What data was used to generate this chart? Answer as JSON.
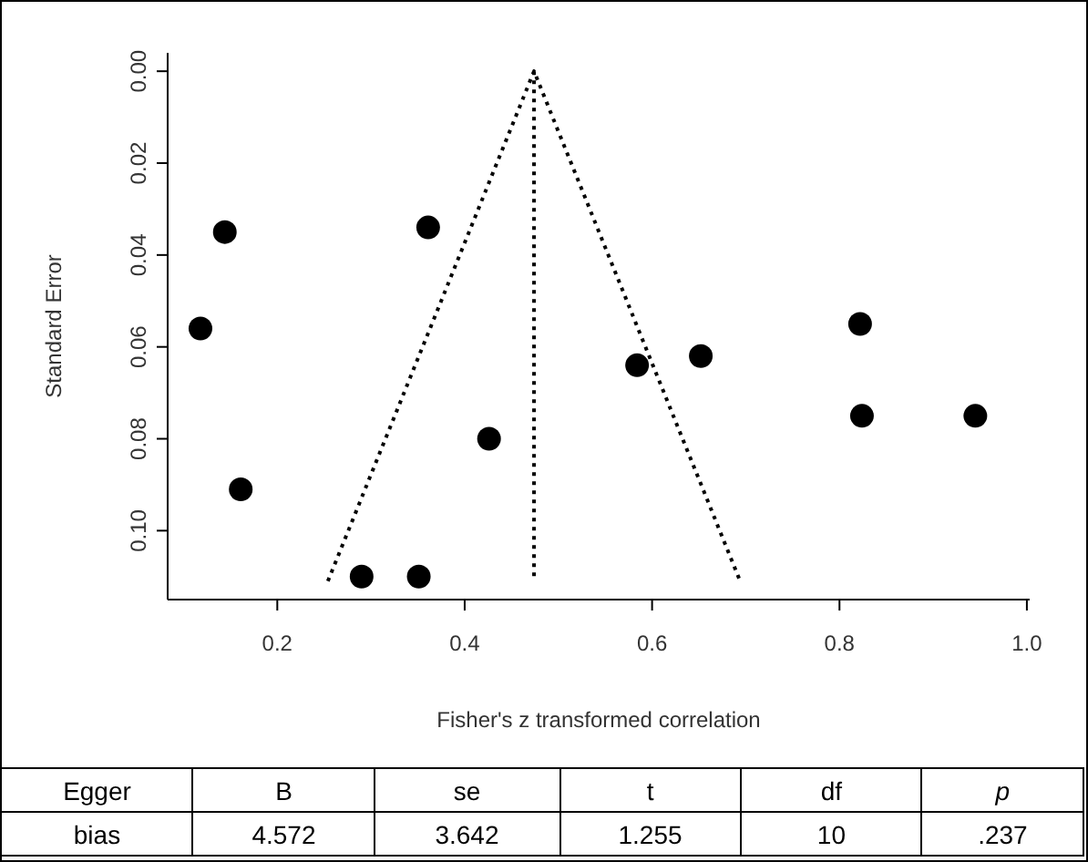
{
  "chart_data": {
    "type": "scatter",
    "xlabel": "Fisher's z transformed correlation",
    "ylabel": "Standard Error",
    "xlim": [
      0.083,
      1.003
    ],
    "ylim": [
      0.115,
      -0.004
    ],
    "xticks": [
      0.2,
      0.4,
      0.6,
      0.8,
      {
        "value": 1.0,
        "label": "1.0"
      }
    ],
    "yticks": [
      {
        "value": 0,
        "label": "0.00"
      },
      0.02,
      0.04,
      0.06,
      0.08,
      {
        "value": 0.1,
        "label": "0.10"
      }
    ],
    "marker": "circle",
    "series": [
      {
        "color": "#000000",
        "x": [
          0.144,
          0.118,
          0.161,
          0.361,
          0.426,
          0.29,
          0.351,
          0.584,
          0.652,
          0.822,
          0.824,
          0.945
        ],
        "values": [
          0.035,
          0.056,
          0.091,
          0.034,
          0.08,
          0.11,
          0.11,
          0.064,
          0.062,
          0.055,
          0.075,
          0.075
        ]
      },
      {
        "type": "line",
        "color": "#000000",
        "line_style": "dotted",
        "marker": "none",
        "x": [
          0.254,
          0.474,
          0.694
        ],
        "values": [
          0.111,
          0,
          0.111
        ]
      },
      {
        "type": "line",
        "color": "#000000",
        "line_style": "dotted",
        "marker": "none",
        "x": [
          0.474,
          0.474
        ],
        "values": [
          0,
          0.111
        ]
      }
    ],
    "annotations": [
      "Egger",
      "B",
      "se",
      "t",
      "df",
      "p",
      "bias",
      "4.572",
      "3.642",
      "1.255",
      "10",
      ".237"
    ]
  }
}
